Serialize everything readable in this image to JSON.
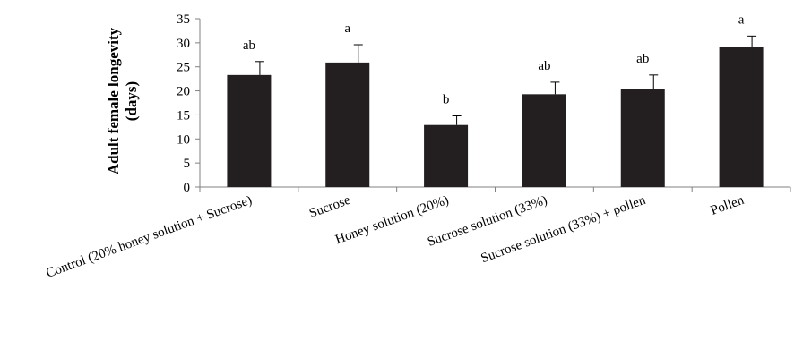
{
  "chart_data": {
    "type": "bar",
    "title": "",
    "ylabel_lines": [
      "Adult female longevity",
      "(days)"
    ],
    "xlabel": "",
    "ylim": [
      0,
      35
    ],
    "yticks": [
      0,
      5,
      10,
      15,
      20,
      25,
      30,
      35
    ],
    "categories": [
      "Control (20% honey solution + Sucrose)",
      "Sucrose",
      "Honey solution (20%)",
      "Sucrose solution (33%)",
      "Sucrose solution (33%) + pollen",
      "Pollen"
    ],
    "values": [
      23.3,
      25.9,
      12.9,
      19.3,
      20.4,
      29.2
    ],
    "errors": [
      2.8,
      3.7,
      1.9,
      2.5,
      2.9,
      2.2
    ],
    "significance": [
      "ab",
      "a",
      "b",
      "ab",
      "ab",
      "a"
    ],
    "bar_color": "#231f20",
    "grid": false
  }
}
